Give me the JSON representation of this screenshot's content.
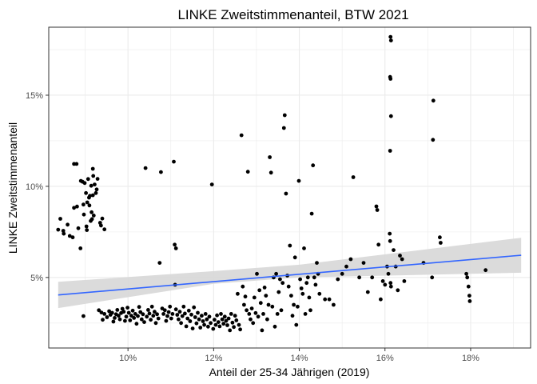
{
  "chart_data": {
    "type": "scatter",
    "title": "LINKE Zweitstimmenanteil, BTW 2021",
    "xlabel": "Anteil der 25-34 Jährigen (2019)",
    "ylabel": "LINKE Zweitstimmenanteil",
    "x_ticks": [
      {
        "value": 0.1,
        "label": "10%"
      },
      {
        "value": 0.12,
        "label": "12%"
      },
      {
        "value": 0.14,
        "label": "14%"
      },
      {
        "value": 0.16,
        "label": "16%"
      },
      {
        "value": 0.18,
        "label": "18%"
      }
    ],
    "y_ticks": [
      {
        "value": 0.05,
        "label": "5%"
      },
      {
        "value": 0.1,
        "label": "10%"
      },
      {
        "value": 0.15,
        "label": "15%"
      }
    ],
    "xlim": [
      0.0815,
      0.194
    ],
    "ylim": [
      0.0113,
      0.1873
    ],
    "grid": true,
    "colors": {
      "points": "#000000",
      "trend": "#3366ff",
      "band": "#d9d9d9",
      "grid": "#ebebeb",
      "border": "#333333"
    },
    "trend_line": {
      "x": [
        0.0837,
        0.1918
      ],
      "y": [
        0.0404,
        0.0622
      ]
    },
    "confidence_band": {
      "x": [
        0.0837,
        0.12,
        0.14,
        0.1918
      ],
      "upper": [
        0.0476,
        0.0535,
        0.057,
        0.0718
      ],
      "lower": [
        0.0332,
        0.0465,
        0.05,
        0.0526
      ]
    },
    "points": [
      [
        0.0837,
        0.0762
      ],
      [
        0.0842,
        0.0822
      ],
      [
        0.0849,
        0.0756
      ],
      [
        0.085,
        0.074
      ],
      [
        0.0859,
        0.079
      ],
      [
        0.0864,
        0.0728
      ],
      [
        0.0871,
        0.072
      ],
      [
        0.0874,
        0.0882
      ],
      [
        0.0874,
        0.1123
      ],
      [
        0.088,
        0.1123
      ],
      [
        0.0881,
        0.0889
      ],
      [
        0.0884,
        0.077
      ],
      [
        0.0889,
        0.066
      ],
      [
        0.089,
        0.103
      ],
      [
        0.0894,
        0.1025
      ],
      [
        0.0896,
        0.09
      ],
      [
        0.0897,
        0.0845
      ],
      [
        0.0899,
        0.1018
      ],
      [
        0.0902,
        0.0963
      ],
      [
        0.0903,
        0.078
      ],
      [
        0.0904,
        0.076
      ],
      [
        0.0905,
        0.0912
      ],
      [
        0.0907,
        0.104
      ],
      [
        0.0909,
        0.0938
      ],
      [
        0.091,
        0.0895
      ],
      [
        0.0911,
        0.0948
      ],
      [
        0.0913,
        0.081
      ],
      [
        0.0914,
        0.1003
      ],
      [
        0.0918,
        0.0951
      ],
      [
        0.0915,
        0.0858
      ],
      [
        0.0916,
        0.082
      ],
      [
        0.0918,
        0.1096
      ],
      [
        0.0919,
        0.1057
      ],
      [
        0.092,
        0.084
      ],
      [
        0.0922,
        0.101
      ],
      [
        0.0925,
        0.0963
      ],
      [
        0.0927,
        0.0983
      ],
      [
        0.0929,
        0.1041
      ],
      [
        0.0935,
        0.08
      ],
      [
        0.0937,
        0.0785
      ],
      [
        0.094,
        0.0823
      ],
      [
        0.0945,
        0.0764
      ],
      [
        0.0896,
        0.0288
      ],
      [
        0.0932,
        0.032
      ],
      [
        0.0938,
        0.0308
      ],
      [
        0.0941,
        0.0268
      ],
      [
        0.0945,
        0.03
      ],
      [
        0.0951,
        0.0282
      ],
      [
        0.0956,
        0.0315
      ],
      [
        0.0959,
        0.0295
      ],
      [
        0.0963,
        0.0306
      ],
      [
        0.0966,
        0.0258
      ],
      [
        0.0969,
        0.0278
      ],
      [
        0.0972,
        0.0298
      ],
      [
        0.0975,
        0.0322
      ],
      [
        0.0978,
        0.029
      ],
      [
        0.0981,
        0.027
      ],
      [
        0.0984,
        0.0305
      ],
      [
        0.0987,
        0.0328
      ],
      [
        0.099,
        0.0312
      ],
      [
        0.0993,
        0.0262
      ],
      [
        0.0996,
        0.0285
      ],
      [
        0.0999,
        0.0334
      ],
      [
        0.1002,
        0.0306
      ],
      [
        0.1005,
        0.0265
      ],
      [
        0.1008,
        0.029
      ],
      [
        0.1011,
        0.0318
      ],
      [
        0.1014,
        0.0278
      ],
      [
        0.1017,
        0.03
      ],
      [
        0.102,
        0.0246
      ],
      [
        0.1023,
        0.0288
      ],
      [
        0.1026,
        0.0338
      ],
      [
        0.1029,
        0.031
      ],
      [
        0.1032,
        0.027
      ],
      [
        0.1035,
        0.0298
      ],
      [
        0.1038,
        0.0255
      ],
      [
        0.1041,
        0.11
      ],
      [
        0.1044,
        0.0285
      ],
      [
        0.1047,
        0.0322
      ],
      [
        0.105,
        0.0302
      ],
      [
        0.1053,
        0.0268
      ],
      [
        0.1056,
        0.034
      ],
      [
        0.1059,
        0.029
      ],
      [
        0.1062,
        0.0312
      ],
      [
        0.1065,
        0.025
      ],
      [
        0.1068,
        0.0298
      ],
      [
        0.1071,
        0.0275
      ],
      [
        0.1074,
        0.058
      ],
      [
        0.1077,
        0.1078
      ],
      [
        0.108,
        0.033
      ],
      [
        0.1083,
        0.03
      ],
      [
        0.1086,
        0.032
      ],
      [
        0.1089,
        0.0262
      ],
      [
        0.1092,
        0.0288
      ],
      [
        0.1095,
        0.031
      ],
      [
        0.1098,
        0.034
      ],
      [
        0.1101,
        0.0275
      ],
      [
        0.1104,
        0.03
      ],
      [
        0.1107,
        0.1135
      ],
      [
        0.1109,
        0.068
      ],
      [
        0.1112,
        0.066
      ],
      [
        0.111,
        0.046
      ],
      [
        0.1112,
        0.0325
      ],
      [
        0.1115,
        0.0295
      ],
      [
        0.1118,
        0.027
      ],
      [
        0.1121,
        0.0312
      ],
      [
        0.1124,
        0.025
      ],
      [
        0.1127,
        0.0288
      ],
      [
        0.113,
        0.034
      ],
      [
        0.1133,
        0.0302
      ],
      [
        0.1136,
        0.0232
      ],
      [
        0.1139,
        0.0275
      ],
      [
        0.1142,
        0.0318
      ],
      [
        0.1145,
        0.026
      ],
      [
        0.1148,
        0.0296
      ],
      [
        0.1151,
        0.022
      ],
      [
        0.1154,
        0.0336
      ],
      [
        0.1157,
        0.0282
      ],
      [
        0.116,
        0.0248
      ],
      [
        0.1163,
        0.0306
      ],
      [
        0.1166,
        0.027
      ],
      [
        0.1169,
        0.0225
      ],
      [
        0.1172,
        0.029
      ],
      [
        0.1175,
        0.026
      ],
      [
        0.1178,
        0.024
      ],
      [
        0.1181,
        0.03
      ],
      [
        0.1184,
        0.027
      ],
      [
        0.1187,
        0.023
      ],
      [
        0.119,
        0.0285
      ],
      [
        0.1193,
        0.025
      ],
      [
        0.1196,
        0.101
      ],
      [
        0.1199,
        0.0218
      ],
      [
        0.1202,
        0.0268
      ],
      [
        0.1205,
        0.024
      ],
      [
        0.1208,
        0.0292
      ],
      [
        0.1211,
        0.0255
      ],
      [
        0.1214,
        0.0232
      ],
      [
        0.1217,
        0.03
      ],
      [
        0.122,
        0.027
      ],
      [
        0.1223,
        0.0246
      ],
      [
        0.1226,
        0.0285
      ],
      [
        0.1229,
        0.0262
      ],
      [
        0.1232,
        0.0238
      ],
      [
        0.1235,
        0.0275
      ],
      [
        0.1238,
        0.021
      ],
      [
        0.1241,
        0.03
      ],
      [
        0.1244,
        0.0252
      ],
      [
        0.1247,
        0.0228
      ],
      [
        0.125,
        0.029
      ],
      [
        0.1253,
        0.0265
      ],
      [
        0.1256,
        0.041
      ],
      [
        0.1259,
        0.024
      ],
      [
        0.1262,
        0.0215
      ],
      [
        0.1265,
        0.128
      ],
      [
        0.1268,
        0.045
      ],
      [
        0.1271,
        0.035
      ],
      [
        0.1274,
        0.0395
      ],
      [
        0.1277,
        0.032
      ],
      [
        0.128,
        0.108
      ],
      [
        0.1283,
        0.03
      ],
      [
        0.1286,
        0.027
      ],
      [
        0.1289,
        0.033
      ],
      [
        0.1292,
        0.025
      ],
      [
        0.1295,
        0.039
      ],
      [
        0.1298,
        0.0305
      ],
      [
        0.1301,
        0.052
      ],
      [
        0.1304,
        0.0285
      ],
      [
        0.1307,
        0.043
      ],
      [
        0.131,
        0.036
      ],
      [
        0.1313,
        0.021
      ],
      [
        0.1316,
        0.03
      ],
      [
        0.1319,
        0.0445
      ],
      [
        0.1322,
        0.04
      ],
      [
        0.1325,
        0.027
      ],
      [
        0.1328,
        0.035
      ],
      [
        0.1331,
        0.116
      ],
      [
        0.1334,
        0.1075
      ],
      [
        0.1337,
        0.034
      ],
      [
        0.134,
        0.05
      ],
      [
        0.1343,
        0.023
      ],
      [
        0.1346,
        0.052
      ],
      [
        0.1349,
        0.03
      ],
      [
        0.1352,
        0.042
      ],
      [
        0.1355,
        0.049
      ],
      [
        0.1358,
        0.032
      ],
      [
        0.1361,
        0.047
      ],
      [
        0.1364,
        0.132
      ],
      [
        0.1366,
        0.139
      ],
      [
        0.1369,
        0.096
      ],
      [
        0.1372,
        0.051
      ],
      [
        0.1375,
        0.045
      ],
      [
        0.1378,
        0.0675
      ],
      [
        0.1381,
        0.04
      ],
      [
        0.1384,
        0.029
      ],
      [
        0.1387,
        0.035
      ],
      [
        0.139,
        0.061
      ],
      [
        0.1393,
        0.024
      ],
      [
        0.1396,
        0.034
      ],
      [
        0.1399,
        0.103
      ],
      [
        0.1402,
        0.049
      ],
      [
        0.1405,
        0.044
      ],
      [
        0.1408,
        0.041
      ],
      [
        0.1411,
        0.066
      ],
      [
        0.1414,
        0.03
      ],
      [
        0.1417,
        0.047
      ],
      [
        0.142,
        0.05
      ],
      [
        0.1423,
        0.039
      ],
      [
        0.1426,
        0.032
      ],
      [
        0.1429,
        0.085
      ],
      [
        0.1432,
        0.1115
      ],
      [
        0.1435,
        0.05
      ],
      [
        0.1438,
        0.046
      ],
      [
        0.1441,
        0.058
      ],
      [
        0.1444,
        0.052
      ],
      [
        0.1447,
        0.041
      ],
      [
        0.146,
        0.038
      ],
      [
        0.147,
        0.038
      ],
      [
        0.148,
        0.035
      ],
      [
        0.149,
        0.049
      ],
      [
        0.15,
        0.052
      ],
      [
        0.151,
        0.056
      ],
      [
        0.152,
        0.06
      ],
      [
        0.1526,
        0.105
      ],
      [
        0.154,
        0.05
      ],
      [
        0.155,
        0.058
      ],
      [
        0.156,
        0.042
      ],
      [
        0.157,
        0.05
      ],
      [
        0.158,
        0.089
      ],
      [
        0.1582,
        0.087
      ],
      [
        0.1585,
        0.068
      ],
      [
        0.159,
        0.038
      ],
      [
        0.1595,
        0.048
      ],
      [
        0.16,
        0.046
      ],
      [
        0.1605,
        0.056
      ],
      [
        0.1608,
        0.052
      ],
      [
        0.1611,
        0.074
      ],
      [
        0.1612,
        0.07
      ],
      [
        0.1613,
        0.182
      ],
      [
        0.1614,
        0.18
      ],
      [
        0.1612,
        0.16
      ],
      [
        0.1613,
        0.159
      ],
      [
        0.1614,
        0.1385
      ],
      [
        0.1612,
        0.1195
      ],
      [
        0.1613,
        0.047
      ],
      [
        0.1614,
        0.045
      ],
      [
        0.162,
        0.065
      ],
      [
        0.1625,
        0.056
      ],
      [
        0.163,
        0.043
      ],
      [
        0.1635,
        0.062
      ],
      [
        0.164,
        0.06
      ],
      [
        0.1645,
        0.048
      ],
      [
        0.169,
        0.058
      ],
      [
        0.1713,
        0.147
      ],
      [
        0.1712,
        0.1255
      ],
      [
        0.171,
        0.05
      ],
      [
        0.1728,
        0.072
      ],
      [
        0.173,
        0.069
      ],
      [
        0.179,
        0.052
      ],
      [
        0.1792,
        0.05
      ],
      [
        0.1795,
        0.045
      ],
      [
        0.1797,
        0.04
      ],
      [
        0.1798,
        0.037
      ],
      [
        0.1835,
        0.054
      ]
    ]
  }
}
